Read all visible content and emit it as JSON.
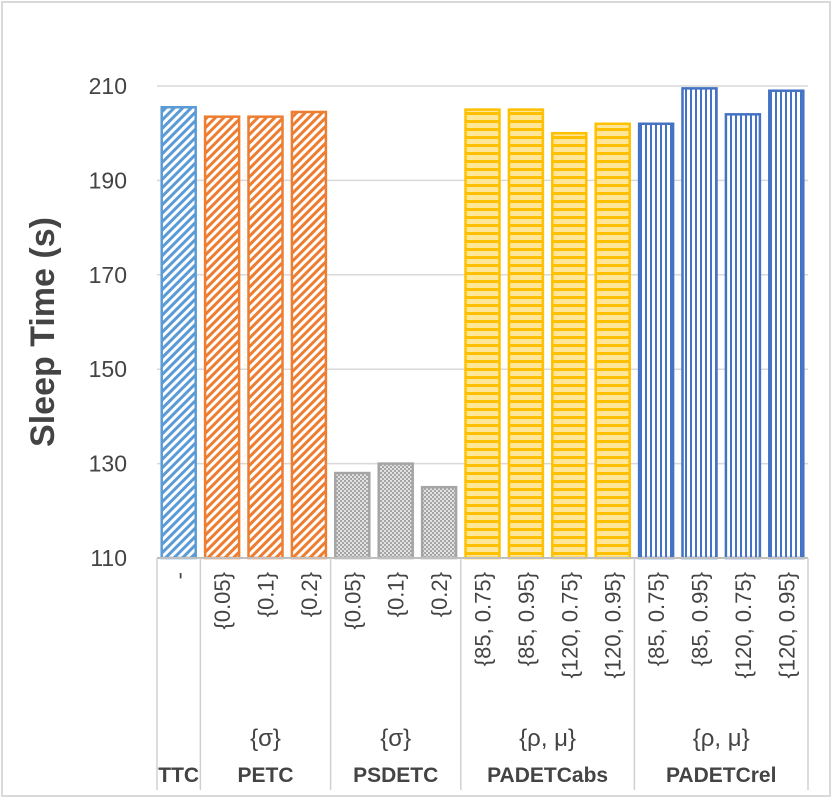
{
  "chart_data": {
    "type": "bar",
    "title": "",
    "xlabel": "",
    "ylabel": "Sleep Time (s)",
    "ylim": [
      110,
      210
    ],
    "yticks": [
      110,
      130,
      150,
      170,
      190,
      210
    ],
    "grid": true,
    "legend": "none",
    "groups": [
      {
        "name": "TTC",
        "param": "",
        "color": "#5B9BD5",
        "pattern": "diagonal-stripes",
        "categories": [
          "-"
        ],
        "values": [
          205.5
        ]
      },
      {
        "name": "PETC",
        "param": "{σ}",
        "color": "#ED7D31",
        "pattern": "diagonal-stripes",
        "categories": [
          "{0.05}",
          "{0.1}",
          "{0.2}"
        ],
        "values": [
          203.5,
          203.5,
          204.5
        ]
      },
      {
        "name": "PSDETC",
        "param": "{σ}",
        "color": "#A5A5A5",
        "pattern": "dots",
        "categories": [
          "{0.05}",
          "{0.1}",
          "{0.2}"
        ],
        "values": [
          128,
          130,
          125
        ]
      },
      {
        "name": "PADETCabs",
        "param": "{ρ, μ}",
        "color": "#FFC000",
        "pattern": "horizontal-stripes",
        "categories": [
          "{85, 0.75}",
          "{85, 0.95}",
          "{120, 0.75}",
          "{120, 0.95}"
        ],
        "values": [
          205,
          205,
          200,
          202
        ]
      },
      {
        "name": "PADETCrel",
        "param": "{ρ, μ}",
        "color": "#4472C4",
        "pattern": "vertical-stripes",
        "categories": [
          "{85, 0.75}",
          "{85, 0.95}",
          "{120, 0.75}",
          "{120, 0.95}"
        ],
        "values": [
          202,
          209.5,
          204,
          209
        ]
      }
    ]
  }
}
